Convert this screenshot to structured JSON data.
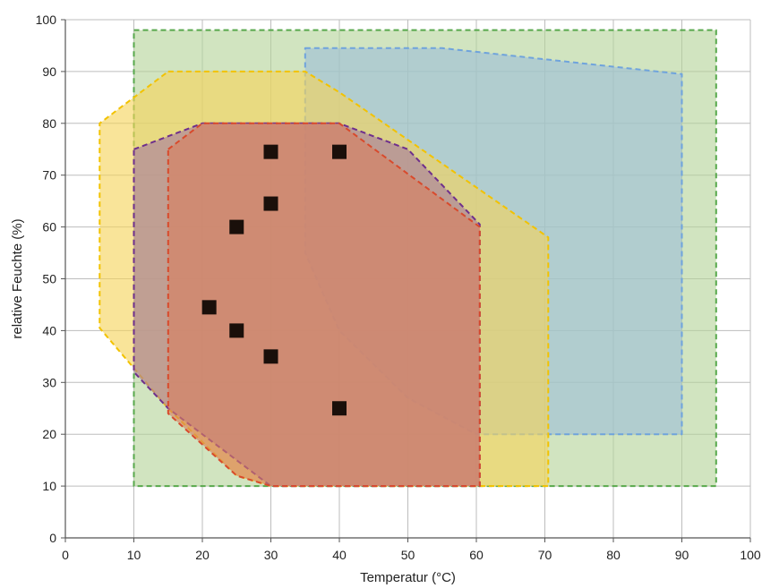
{
  "chart_data": {
    "type": "scatter",
    "xlabel": "Temperatur (°C)",
    "ylabel": "relative Feuchte (%)",
    "xlim": [
      0,
      100
    ],
    "ylim": [
      0,
      100
    ],
    "x_ticks": [
      "0",
      "10",
      "20",
      "30",
      "40",
      "50",
      "60",
      "70",
      "80",
      "90",
      "100"
    ],
    "y_ticks": [
      "0",
      "10",
      "20",
      "30",
      "40",
      "50",
      "60",
      "70",
      "80",
      "90",
      "100"
    ],
    "grid": true,
    "legend": "none",
    "regions": [
      {
        "fill": "#b5d39a",
        "stroke": "#58a84c",
        "points": [
          [
            10,
            98
          ],
          [
            95,
            98
          ],
          [
            95,
            10
          ],
          [
            10,
            10
          ]
        ]
      },
      {
        "fill": "#9cbfd8",
        "stroke": "#6fa3dc",
        "points": [
          [
            35,
            94.5
          ],
          [
            55,
            94.5
          ],
          [
            90,
            89.5
          ],
          [
            90,
            20
          ],
          [
            60,
            20
          ],
          [
            50,
            27
          ],
          [
            40,
            40
          ],
          [
            35,
            55
          ]
        ]
      },
      {
        "fill": "#f5d35a",
        "stroke": "#f2c200",
        "points": [
          [
            15,
            90
          ],
          [
            35,
            90
          ],
          [
            40,
            86
          ],
          [
            70.5,
            58
          ],
          [
            70.5,
            10
          ],
          [
            30,
            10
          ],
          [
            25,
            12
          ],
          [
            15,
            25
          ],
          [
            5,
            40.5
          ],
          [
            5,
            80
          ]
        ]
      },
      {
        "fill": "#a87a9e",
        "stroke": "#6e2f8c",
        "points": [
          [
            10,
            75
          ],
          [
            20,
            80
          ],
          [
            40,
            80
          ],
          [
            50,
            75
          ],
          [
            60.5,
            60.5
          ],
          [
            60.5,
            10
          ],
          [
            30,
            10
          ],
          [
            15,
            25
          ],
          [
            10,
            32
          ]
        ]
      },
      {
        "fill": "#d98060",
        "stroke": "#d84a2c",
        "points": [
          [
            15,
            75
          ],
          [
            20,
            80
          ],
          [
            40,
            80
          ],
          [
            60.5,
            60
          ],
          [
            60.5,
            10
          ],
          [
            30,
            10
          ],
          [
            25,
            12
          ],
          [
            15,
            24
          ]
        ]
      }
    ],
    "points": [
      {
        "x": 30,
        "y": 74.5
      },
      {
        "x": 40,
        "y": 74.5
      },
      {
        "x": 30,
        "y": 64.5
      },
      {
        "x": 25,
        "y": 60
      },
      {
        "x": 21,
        "y": 44.5
      },
      {
        "x": 25,
        "y": 40
      },
      {
        "x": 30,
        "y": 35
      },
      {
        "x": 40,
        "y": 25
      }
    ],
    "colors": {
      "grid": "#bdbdbd",
      "axis": "#555555",
      "marker": "#1a0f0a"
    }
  }
}
